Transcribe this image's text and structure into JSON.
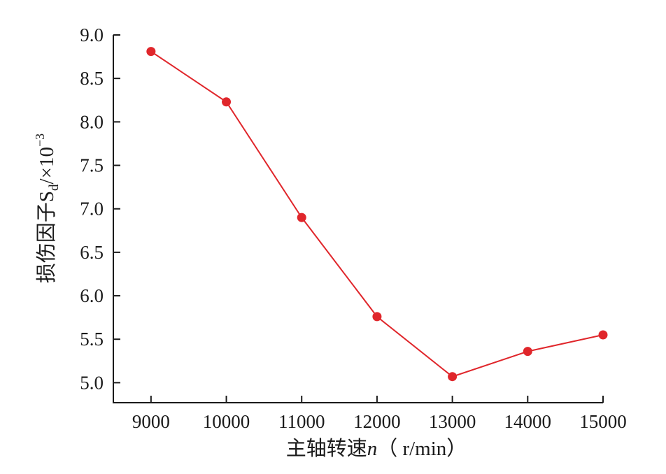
{
  "chart_data": {
    "type": "line",
    "title": "",
    "xlabel": "主轴转速n（ r/min）",
    "xlabel_parts": {
      "main": "主轴转速",
      "var": "n",
      "unit": "（ r/min）"
    },
    "ylabel": "损伤因子Sd/×10⁻³",
    "ylabel_parts": {
      "main": "损伤因子S",
      "sub": "d",
      "unit": "/×10",
      "sup": "−3"
    },
    "x": [
      9000,
      10000,
      11000,
      12000,
      13000,
      14000,
      15000
    ],
    "x_tick_labels": [
      "9000",
      "10000",
      "11000",
      "12000",
      "13000",
      "14000",
      "15000"
    ],
    "y_ticks": [
      5.0,
      5.5,
      6.0,
      6.5,
      7.0,
      7.5,
      8.0,
      8.5,
      9.0
    ],
    "y_tick_labels": [
      "5.0",
      "5.5",
      "6.0",
      "6.5",
      "7.0",
      "7.5",
      "8.0",
      "8.5",
      "9.0"
    ],
    "ylim": [
      4.77,
      9.0
    ],
    "xlim": [
      8500,
      15000
    ],
    "grid": false,
    "series": [
      {
        "values": [
          8.81,
          8.23,
          6.9,
          5.76,
          5.07,
          5.36,
          5.55
        ],
        "color": "#e0262b",
        "marker": "circle"
      }
    ]
  }
}
